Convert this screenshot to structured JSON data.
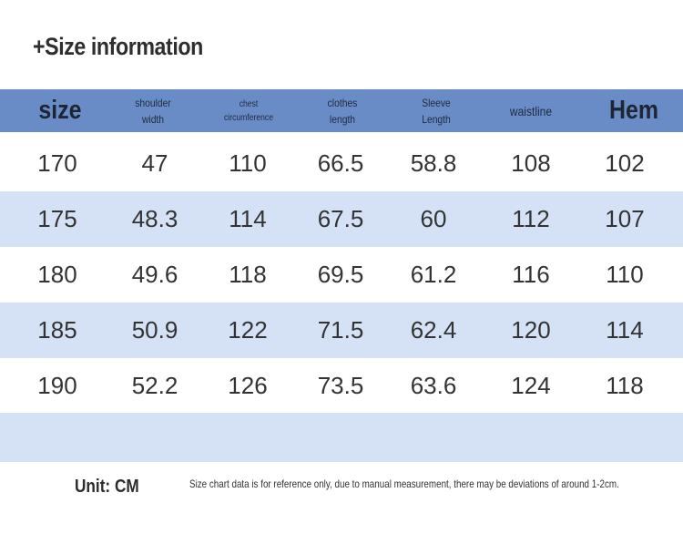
{
  "title": "+Size information",
  "headers": [
    "size",
    "shoulder\nwidth",
    "chest\ncircumference",
    "clothes\nlength",
    "Sleeve\nLength",
    "waistline",
    "Hem"
  ],
  "rows": [
    [
      "170",
      "47",
      "110",
      "66.5",
      "58.8",
      "108",
      "102"
    ],
    [
      "175",
      "48.3",
      "114",
      "67.5",
      "60",
      "112",
      "107"
    ],
    [
      "180",
      "49.6",
      "118",
      "69.5",
      "61.2",
      "116",
      "110"
    ],
    [
      "185",
      "50.9",
      "122",
      "71.5",
      "62.4",
      "120",
      "114"
    ],
    [
      "190",
      "52.2",
      "126",
      "73.5",
      "63.6",
      "124",
      "118"
    ]
  ],
  "unit": "Unit: CM",
  "note": "Size chart data is for reference only, due to manual measurement, there may be deviations of around 1-2cm.",
  "colors": {
    "header": "#6a8cc6",
    "row_alt": "#d5e2f6"
  }
}
